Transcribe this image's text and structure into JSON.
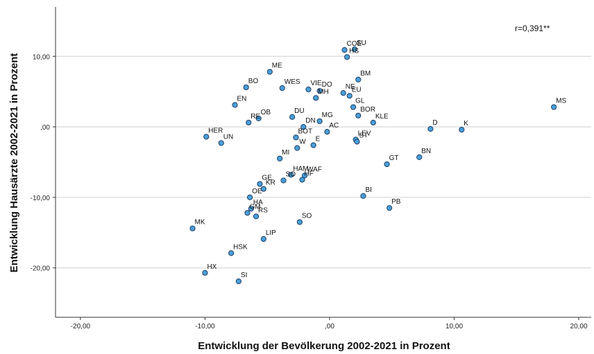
{
  "chart_data": {
    "type": "scatter",
    "xlabel": "Entwicklung der Bevölkerung 2002-2021 in Prozent",
    "ylabel": "Entwicklung Hausärzte 2002-2021 in Prozent",
    "xlim": [
      -22,
      21
    ],
    "ylim": [
      -27,
      17
    ],
    "x_ticks": [
      -20,
      -10,
      0,
      10,
      20
    ],
    "x_tick_labels": [
      "-20,00",
      "-10,00",
      ",00",
      "10,00",
      "20,00"
    ],
    "y_ticks": [
      10,
      0,
      -10,
      -20
    ],
    "y_tick_labels": [
      "10,00",
      ",00",
      "-10,00",
      "-20,00"
    ],
    "grid": "horizontal",
    "annotation": "r=0,391**",
    "marker_color": "#4a9fd8",
    "marker_edge": "#1f3f66",
    "points": [
      {
        "label": "COE",
        "x": 1.2,
        "y": 10.9
      },
      {
        "label": "SU",
        "x": 2.0,
        "y": 11.0
      },
      {
        "label": "HS",
        "x": 1.4,
        "y": 9.9
      },
      {
        "label": "BM",
        "x": 2.3,
        "y": 6.7
      },
      {
        "label": "ME",
        "x": -4.8,
        "y": 7.8
      },
      {
        "label": "BO",
        "x": -6.7,
        "y": 5.6
      },
      {
        "label": "WES",
        "x": -3.8,
        "y": 5.5
      },
      {
        "label": "VIE",
        "x": -1.7,
        "y": 5.3
      },
      {
        "label": "NE",
        "x": 1.1,
        "y": 4.8
      },
      {
        "label": "EU",
        "x": 1.6,
        "y": 4.4
      },
      {
        "label": "DO",
        "x": -0.8,
        "y": 5.1
      },
      {
        "label": "EN",
        "x": -7.6,
        "y": 3.1
      },
      {
        "label": "GL",
        "x": 1.9,
        "y": 2.8
      },
      {
        "label": "MH",
        "x": -1.1,
        "y": 4.1
      },
      {
        "label": "MS",
        "x": 18.0,
        "y": 2.8
      },
      {
        "label": "OB",
        "x": -5.7,
        "y": 1.2
      },
      {
        "label": "MG",
        "x": -0.8,
        "y": 0.8
      },
      {
        "label": "DU",
        "x": -3.0,
        "y": 1.4
      },
      {
        "label": "DN",
        "x": -2.1,
        "y": 0.0
      },
      {
        "label": "BOR",
        "x": 2.3,
        "y": 1.6
      },
      {
        "label": "KLE",
        "x": 3.5,
        "y": 0.6
      },
      {
        "label": "RE",
        "x": -6.5,
        "y": 0.6
      },
      {
        "label": "AC",
        "x": -0.2,
        "y": -0.7
      },
      {
        "label": "BOT",
        "x": -2.7,
        "y": -1.5
      },
      {
        "label": "D",
        "x": 8.1,
        "y": -0.3
      },
      {
        "label": "K",
        "x": 10.6,
        "y": -0.4
      },
      {
        "label": "HER",
        "x": -9.9,
        "y": -1.4
      },
      {
        "label": "UN",
        "x": -8.7,
        "y": -2.3
      },
      {
        "label": "LEV",
        "x": 2.1,
        "y": -1.8
      },
      {
        "label": "E",
        "x": -1.3,
        "y": -2.6
      },
      {
        "label": "W",
        "x": -2.6,
        "y": -3.0
      },
      {
        "label": "ST",
        "x": 2.2,
        "y": -2.1
      },
      {
        "label": "MI",
        "x": -4.0,
        "y": -4.5
      },
      {
        "label": "GT",
        "x": 4.6,
        "y": -5.3
      },
      {
        "label": "BN",
        "x": 7.2,
        "y": -4.3
      },
      {
        "label": "HAM",
        "x": -3.1,
        "y": -6.8
      },
      {
        "label": "WAF",
        "x": -2.0,
        "y": -6.9
      },
      {
        "label": "GE",
        "x": -5.6,
        "y": -8.1
      },
      {
        "label": "SO",
        "x": -3.7,
        "y": -7.6
      },
      {
        "label": "HF",
        "x": -2.2,
        "y": -7.5
      },
      {
        "label": "KR",
        "x": -5.3,
        "y": -8.8
      },
      {
        "label": "BI",
        "x": 2.7,
        "y": -9.8
      },
      {
        "label": "OE",
        "x": -6.4,
        "y": -10.0
      },
      {
        "label": "HA",
        "x": -6.3,
        "y": -11.6
      },
      {
        "label": "GM",
        "x": -6.6,
        "y": -12.2
      },
      {
        "label": "PB",
        "x": 4.8,
        "y": -11.5
      },
      {
        "label": "RS",
        "x": -5.9,
        "y": -12.7
      },
      {
        "label": "SO",
        "x": -2.4,
        "y": -13.5
      },
      {
        "label": "MK",
        "x": -11.0,
        "y": -14.4
      },
      {
        "label": "LIP",
        "x": -5.3,
        "y": -15.9
      },
      {
        "label": "HSK",
        "x": -7.9,
        "y": -17.9
      },
      {
        "label": "HX",
        "x": -10.0,
        "y": -20.7
      },
      {
        "label": "SI",
        "x": -7.3,
        "y": -21.9
      }
    ]
  }
}
